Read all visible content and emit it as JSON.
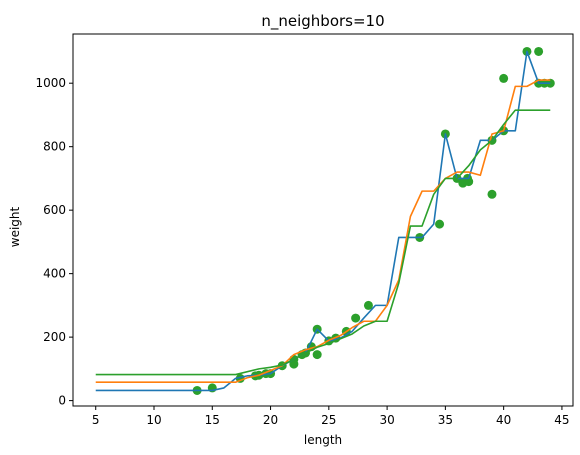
{
  "chart_data": {
    "type": "line",
    "title": "n_neighbors=10",
    "xlabel": "length",
    "ylabel": "weight",
    "xlim": [
      3.05,
      45.95
    ],
    "ylim": [
      -17,
      1155
    ],
    "x_ticks": [
      5,
      10,
      15,
      20,
      25,
      30,
      35,
      40,
      45
    ],
    "y_ticks": [
      0,
      200,
      400,
      600,
      800,
      1000
    ],
    "grid": false,
    "colors": {
      "points": "#2ca02c",
      "line1": "#1f77b4",
      "line2": "#ff7f0e",
      "line3": "#2ca02c"
    },
    "scatter": {
      "x": [
        13.7,
        15.0,
        17.4,
        18.7,
        19.0,
        19.6,
        20.0,
        21.0,
        22.0,
        22.0,
        22.7,
        23.0,
        23.5,
        24.0,
        24.0,
        25.0,
        25.6,
        26.5,
        27.3,
        28.4,
        32.8,
        34.5,
        35.0,
        36.0,
        36.5,
        36.9,
        37.0,
        39.0,
        39.0,
        40.0,
        40.0,
        42.0,
        43.0,
        43.0,
        43.5,
        44.0
      ],
      "y": [
        32,
        40,
        70,
        78,
        80,
        85,
        85,
        110,
        115,
        130,
        145,
        150,
        170,
        225,
        145,
        188,
        197,
        218,
        260,
        300,
        514,
        556,
        840,
        700,
        685,
        700,
        690,
        650,
        820,
        850,
        1015,
        1100,
        1100,
        1000,
        1000,
        1000
      ]
    },
    "series": [
      {
        "x": [
          5,
          15,
          16,
          17,
          18,
          19,
          20,
          21,
          22,
          23,
          24,
          25,
          26,
          27,
          28,
          29,
          30,
          31,
          32,
          33,
          34,
          35,
          36,
          37,
          38,
          39,
          40,
          41,
          42,
          43,
          44
        ],
        "y": [
          32,
          32,
          40,
          70,
          78,
          80,
          85,
          110,
          130,
          150,
          225,
          188,
          197,
          218,
          260,
          300,
          300,
          514,
          514,
          514,
          556,
          840,
          700,
          700,
          820,
          820,
          850,
          850,
          1100,
          1000,
          1000
        ]
      },
      {
        "x": [
          5,
          17,
          18,
          19,
          20,
          21,
          22,
          23,
          24,
          25,
          26,
          27,
          28,
          29,
          30,
          31,
          32,
          33,
          34,
          35,
          36,
          37,
          38,
          39,
          40,
          41,
          42,
          43,
          44
        ],
        "y": [
          58,
          58,
          72,
          80,
          95,
          110,
          145,
          160,
          170,
          190,
          205,
          230,
          250,
          250,
          300,
          380,
          580,
          660,
          660,
          700,
          720,
          720,
          710,
          840,
          850,
          990,
          990,
          1010,
          1010
        ]
      },
      {
        "x": [
          5,
          17,
          19,
          20,
          21,
          22,
          23,
          24,
          25,
          26,
          27,
          28,
          29,
          30,
          31,
          32,
          33,
          34,
          35,
          36,
          37,
          38,
          39,
          40,
          41,
          42,
          43,
          44
        ],
        "y": [
          82,
          82,
          100,
          105,
          112,
          130,
          150,
          168,
          180,
          195,
          210,
          235,
          250,
          250,
          370,
          550,
          550,
          650,
          700,
          700,
          740,
          790,
          820,
          870,
          915,
          915,
          915,
          915
        ]
      }
    ]
  }
}
